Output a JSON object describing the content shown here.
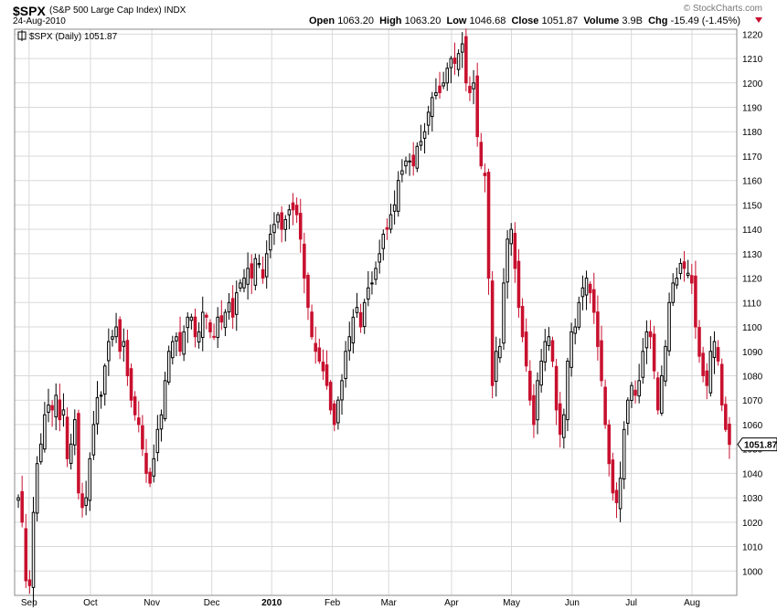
{
  "header": {
    "symbol": "$SPX",
    "name": "(S&P 500 Large Cap Index)",
    "exchange": "INDX",
    "date": "24-Aug-2010",
    "brand": "© StockCharts.com"
  },
  "quote": {
    "open_label": "Open",
    "open": "1063.20",
    "high_label": "High",
    "high": "1063.20",
    "low_label": "Low",
    "low": "1046.68",
    "close_label": "Close",
    "close": "1051.87",
    "volume_label": "Volume",
    "volume": "3.9B",
    "chg_label": "Chg",
    "chg": "-15.49 (-1.45%)"
  },
  "colors": {
    "up": "#000000",
    "down": "#c8102e",
    "grid": "#d9d9d9"
  },
  "chart_data": {
    "type": "candlestick",
    "series_label": "$SPX (Daily) 1051.87",
    "last_value_label": "1051.87",
    "last_value": 1051.87,
    "ylim": [
      990,
      1222
    ],
    "y_ticks": [
      1000,
      1010,
      1020,
      1030,
      1040,
      1050,
      1060,
      1070,
      1080,
      1090,
      1100,
      1110,
      1120,
      1130,
      1140,
      1150,
      1160,
      1170,
      1180,
      1190,
      1200,
      1210,
      1220
    ],
    "x_labels": [
      {
        "label": "Sep",
        "t": 0.02,
        "bold": false
      },
      {
        "label": "Oct",
        "t": 0.105,
        "bold": false
      },
      {
        "label": "Nov",
        "t": 0.19,
        "bold": false
      },
      {
        "label": "Dec",
        "t": 0.273,
        "bold": false
      },
      {
        "label": "2010",
        "t": 0.356,
        "bold": true
      },
      {
        "label": "Feb",
        "t": 0.44,
        "bold": false
      },
      {
        "label": "Mar",
        "t": 0.518,
        "bold": false
      },
      {
        "label": "Apr",
        "t": 0.605,
        "bold": false
      },
      {
        "label": "May",
        "t": 0.688,
        "bold": false
      },
      {
        "label": "Jun",
        "t": 0.772,
        "bold": false
      },
      {
        "label": "Jul",
        "t": 0.854,
        "bold": false
      },
      {
        "label": "Aug",
        "t": 0.938,
        "bold": false
      }
    ],
    "closes": [
      1030,
      1020,
      996,
      994,
      1024,
      1044,
      1052,
      1064,
      1068,
      1066,
      1072,
      1062,
      1066,
      1046,
      1052,
      1062,
      1032,
      1026,
      1030,
      1046,
      1060,
      1071,
      1072,
      1084,
      1094,
      1096,
      1100,
      1090,
      1094,
      1080,
      1070,
      1064,
      1060,
      1050,
      1040,
      1036,
      1046,
      1058,
      1064,
      1078,
      1090,
      1094,
      1096,
      1090,
      1098,
      1104,
      1104,
      1096,
      1098,
      1106,
      1104,
      1098,
      1096,
      1104,
      1102,
      1106,
      1110,
      1104,
      1114,
      1118,
      1120,
      1124,
      1120,
      1128,
      1126,
      1120,
      1130,
      1138,
      1142,
      1146,
      1140,
      1144,
      1148,
      1148,
      1146,
      1136,
      1120,
      1108,
      1096,
      1090,
      1086,
      1082,
      1076,
      1066,
      1060,
      1070,
      1078,
      1090,
      1096,
      1104,
      1108,
      1100,
      1110,
      1116,
      1118,
      1124,
      1130,
      1138,
      1140,
      1146,
      1150,
      1160,
      1164,
      1168,
      1168,
      1166,
      1174,
      1176,
      1180,
      1188,
      1194,
      1196,
      1196,
      1200,
      1206,
      1210,
      1208,
      1212,
      1216,
      1200,
      1196,
      1200,
      1178,
      1166,
      1162,
      1120,
      1076,
      1090,
      1092,
      1118,
      1136,
      1140,
      1124,
      1108,
      1096,
      1084,
      1070,
      1060,
      1078,
      1086,
      1094,
      1096,
      1086,
      1066,
      1056,
      1064,
      1086,
      1098,
      1100,
      1110,
      1116,
      1120,
      1114,
      1106,
      1092,
      1078,
      1060,
      1044,
      1032,
      1028,
      1038,
      1058,
      1070,
      1076,
      1072,
      1078,
      1090,
      1098,
      1096,
      1082,
      1066,
      1080,
      1092,
      1110,
      1118,
      1120,
      1126,
      1124,
      1122,
      1118,
      1100,
      1088,
      1080,
      1076,
      1090,
      1094,
      1086,
      1068,
      1058,
      1051.87
    ]
  }
}
